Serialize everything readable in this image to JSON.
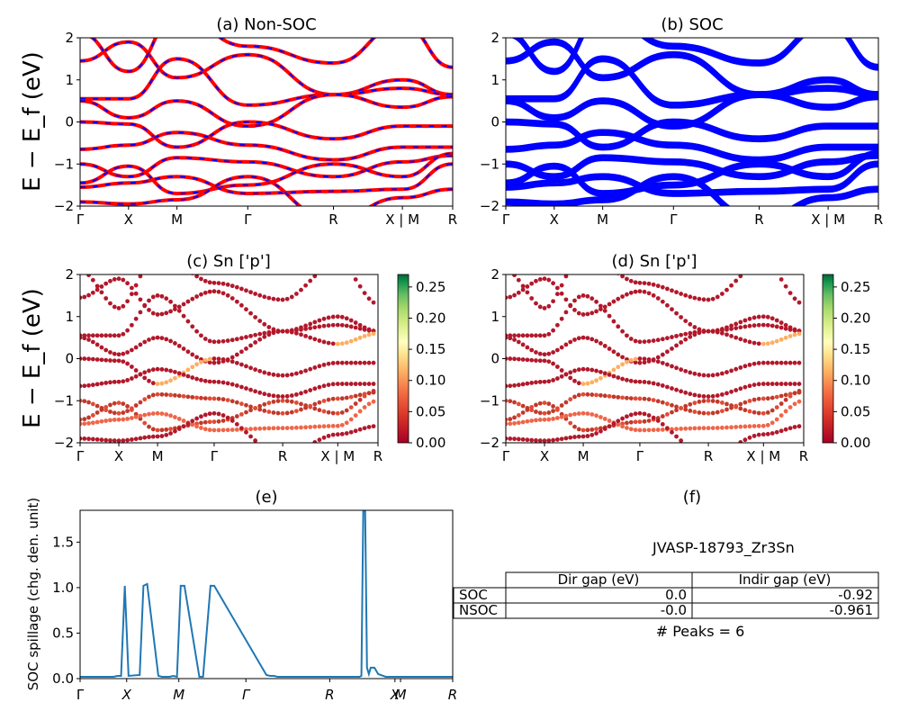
{
  "panels": {
    "a": {
      "title": "(a) Non-SOC"
    },
    "b": {
      "title": "(b) SOC"
    },
    "c": {
      "title": "(c)  Sn ['p']"
    },
    "d": {
      "title": "(d) Sn ['p']"
    },
    "e": {
      "title": "(e)"
    },
    "f": {
      "title": "(f)"
    }
  },
  "band_axes": {
    "ylabel": "E − E_f (eV)",
    "yticks": [
      "2",
      "1",
      "0",
      "−1",
      "−2"
    ],
    "xticks": [
      "Γ",
      "X",
      "M",
      "Γ",
      "R",
      "X | M",
      "R"
    ]
  },
  "colorbar": {
    "ticks": [
      "0.25",
      "0.20",
      "0.15",
      "0.10",
      "0.05",
      "0.00"
    ]
  },
  "spillage": {
    "ylabel": "SOC spillage (chg. den. unit)",
    "yticks": [
      "1.5",
      "1.0",
      "0.5",
      "0.0"
    ],
    "xticks": [
      "Γ",
      "X",
      "M",
      "Γ",
      "R",
      "X",
      "M",
      "R"
    ]
  },
  "info": {
    "material": "JVASP-18793_Zr3Sn",
    "col1": "Dir gap (eV)",
    "col2": "Indir gap (eV)",
    "row1": {
      "label": "SOC",
      "dir": "0.0",
      "indir": "-0.92"
    },
    "row2": {
      "label": "NSOC",
      "dir": "-0.0",
      "indir": "-0.961"
    },
    "peaks": "# Peaks = 6"
  },
  "colors": {
    "nonsoc_line": "#ff0000",
    "nonsoc_dash": "#0000ff",
    "soc_line": "#0000ff",
    "spillage_line": "#1f77b4"
  },
  "chart_data": [
    {
      "type": "line",
      "title": "(a) Non-SOC",
      "ylabel": "E − E_f (eV)",
      "ylim": [
        -2,
        2
      ],
      "xticks": [
        "Γ",
        "X",
        "M",
        "Γ",
        "R",
        "X | M",
        "R"
      ],
      "note": "band structure, red solid with blue dashed overlay"
    },
    {
      "type": "line",
      "title": "(b) SOC",
      "ylim": [
        -2,
        2
      ],
      "xticks": [
        "Γ",
        "X",
        "M",
        "Γ",
        "R",
        "X | M",
        "R"
      ]
    },
    {
      "type": "scatter",
      "title": "(c)  Sn ['p']",
      "ylabel": "E − E_f (eV)",
      "ylim": [
        -2,
        2
      ],
      "colorbar_range": [
        0.0,
        0.27
      ]
    },
    {
      "type": "scatter",
      "title": "(d) Sn ['p']",
      "ylim": [
        -2,
        2
      ],
      "colorbar_range": [
        0.0,
        0.27
      ]
    },
    {
      "type": "line",
      "title": "(e)",
      "ylabel": "SOC spillage (chg. den. unit)",
      "ylim": [
        0,
        1.85
      ],
      "xlim": [
        0,
        100
      ],
      "x": [
        0,
        9,
        10,
        11,
        12,
        13,
        16,
        17,
        18,
        21,
        22,
        23,
        24,
        25,
        26,
        27,
        28,
        32,
        33,
        35,
        36,
        50,
        51,
        52,
        53,
        54,
        55,
        56,
        60,
        65,
        70,
        75,
        75.5,
        76,
        76.5,
        77,
        77.5,
        78,
        79,
        80,
        82,
        90,
        100
      ],
      "y": [
        0.02,
        0.02,
        0.03,
        0.03,
        1.02,
        0.03,
        0.04,
        1.02,
        1.04,
        0.03,
        0.02,
        0.02,
        0.02,
        0.03,
        0.02,
        1.02,
        1.02,
        0.02,
        0.02,
        1.02,
        1.02,
        0.04,
        0.03,
        0.03,
        0.02,
        0.02,
        0.02,
        0.02,
        0.02,
        0.02,
        0.02,
        0.02,
        0.03,
        1.85,
        1.85,
        0.12,
        0.05,
        0.12,
        0.12,
        0.05,
        0.02,
        0.02,
        0.02
      ]
    }
  ]
}
